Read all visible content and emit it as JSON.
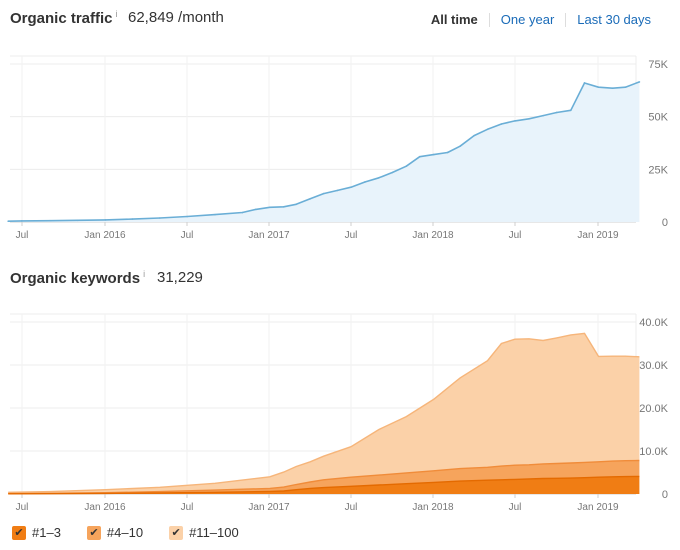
{
  "traffic": {
    "title": "Organic traffic",
    "info_icon": "info-icon",
    "value": "62,849 /month",
    "tabs": [
      "All time",
      "One year",
      "Last 30 days"
    ],
    "active_tab": "All time"
  },
  "keywords": {
    "title": "Organic keywords",
    "info_icon": "info-icon",
    "value": "31,229",
    "legend": [
      {
        "label": "#1–3",
        "color": "#f07d14",
        "checked": true
      },
      {
        "label": "#4–10",
        "color": "#f6a45c",
        "checked": true
      },
      {
        "label": "#11–100",
        "color": "#fbd1a8",
        "checked": true
      }
    ]
  },
  "chart_data": [
    {
      "type": "area",
      "series": [
        {
          "x": [
            "2015-06",
            "2015-07",
            "2015-09",
            "2015-11",
            "2016-01",
            "2016-03",
            "2016-05",
            "2016-07",
            "2016-09",
            "2016-11",
            "2016-12",
            "2017-01",
            "2017-02",
            "2017-03",
            "2017-04",
            "2017-05",
            "2017-06",
            "2017-07",
            "2017-08",
            "2017-09",
            "2017-10",
            "2017-11",
            "2017-12",
            "2018-01",
            "2018-02",
            "2018-03",
            "2018-04",
            "2018-05",
            "2018-06",
            "2018-07",
            "2018-08",
            "2018-09",
            "2018-10",
            "2018-11",
            "2018-12",
            "2019-01",
            "2019-02",
            "2019-03",
            "2019-04"
          ],
          "values": [
            400,
            500,
            600,
            800,
            1000,
            1400,
            1900,
            2600,
            3500,
            4500,
            6000,
            7000,
            7200,
            8400,
            11000,
            13500,
            15000,
            16500,
            19000,
            21000,
            23500,
            26500,
            31000,
            32000,
            33000,
            36000,
            41000,
            44000,
            46500,
            48000,
            49000,
            50500,
            52000,
            53000,
            66000,
            64000,
            63500,
            64000,
            66500
          ]
        }
      ],
      "y_ticks": [
        "0",
        "25K",
        "50K",
        "75K"
      ],
      "ylim": [
        0,
        75000
      ],
      "x_ticks": [
        "Jul",
        "Jan 2016",
        "Jul",
        "Jan 2017",
        "Jul",
        "Jan 2018",
        "Jul",
        "Jan 2019"
      ],
      "line_color": "#6aaed6",
      "fill_color": "#e8f3fb",
      "grid": true
    },
    {
      "type": "area",
      "stacked": true,
      "x": [
        "2015-06",
        "2015-09",
        "2016-01",
        "2016-05",
        "2016-09",
        "2017-01",
        "2017-02",
        "2017-03",
        "2017-04",
        "2017-05",
        "2017-07",
        "2017-09",
        "2017-11",
        "2018-01",
        "2018-03",
        "2018-05",
        "2018-06",
        "2018-07",
        "2018-08",
        "2018-09",
        "2018-10",
        "2018-11",
        "2018-12",
        "2019-01",
        "2019-02",
        "2019-03",
        "2019-04"
      ],
      "series": [
        {
          "name": "#1–3",
          "values": [
            50,
            80,
            150,
            250,
            400,
            600,
            700,
            1000,
            1300,
            1500,
            1800,
            2100,
            2400,
            2700,
            3000,
            3200,
            3300,
            3400,
            3500,
            3600,
            3650,
            3700,
            3800,
            3900,
            4000,
            4050,
            4100
          ]
        },
        {
          "name": "#4–10",
          "values": [
            50,
            80,
            150,
            300,
            500,
            700,
            900,
            1200,
            1500,
            1800,
            2100,
            2300,
            2500,
            2700,
            2900,
            3000,
            3200,
            3300,
            3300,
            3400,
            3450,
            3500,
            3550,
            3600,
            3650,
            3700,
            3700
          ]
        },
        {
          "name": "#11–100",
          "values": [
            300,
            400,
            700,
            1000,
            1600,
            2700,
            3500,
            4200,
            4700,
            5500,
            7100,
            10600,
            13100,
            16600,
            21100,
            24800,
            28500,
            29300,
            29300,
            28700,
            29200,
            29800,
            30000,
            24500,
            24400,
            24300,
            24100
          ]
        }
      ],
      "y_ticks": [
        "0",
        "10.0K",
        "20.0K",
        "30.0K",
        "40.0K"
      ],
      "ylim": [
        0,
        40000
      ],
      "x_ticks": [
        "Jul",
        "Jan 2016",
        "Jul",
        "Jan 2017",
        "Jul",
        "Jan 2018",
        "Jul",
        "Jan 2019"
      ],
      "grid": true
    }
  ]
}
